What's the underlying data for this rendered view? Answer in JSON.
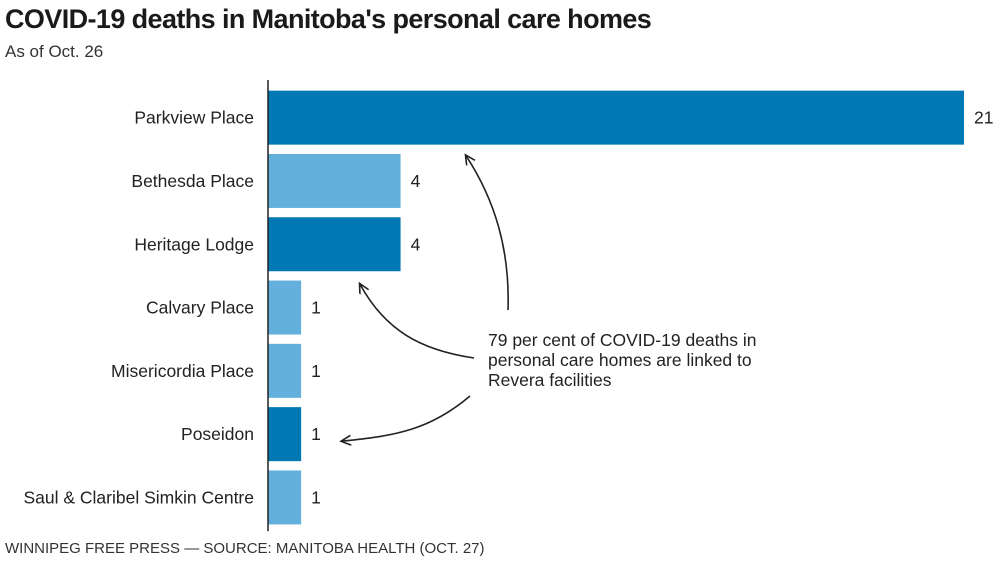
{
  "header": {
    "title": "COVID-19 deaths in Manitoba's personal care homes",
    "subtitle": "As of Oct. 26"
  },
  "footer": {
    "credit": "WINNIPEG FREE PRESS — SOURCE: MANITOBA HEALTH (OCT. 27)"
  },
  "colors": {
    "revera": "#0078b4",
    "other": "#64b0dc",
    "axis": "#222222",
    "arrow": "#222222"
  },
  "chart_data": {
    "type": "bar",
    "orientation": "horizontal",
    "title": "COVID-19 deaths in Manitoba's personal care homes",
    "subtitle": "As of Oct. 26",
    "categories": [
      "Parkview Place",
      "Bethesda Place",
      "Heritage Lodge",
      "Calvary Place",
      "Misericordia Place",
      "Poseidon",
      "Saul & Claribel Simkin Centre"
    ],
    "values": [
      21,
      4,
      4,
      1,
      1,
      1,
      1
    ],
    "revera_facility": [
      true,
      false,
      true,
      false,
      false,
      true,
      false
    ],
    "xlim": [
      0,
      21
    ],
    "xlabel": "",
    "ylabel": "",
    "annotation": {
      "lines": [
        "79 per cent of COVID-19 deaths in",
        "personal care homes are linked to",
        "Revera facilities"
      ],
      "points_to": [
        "Parkview Place",
        "Heritage Lodge",
        "Poseidon"
      ]
    }
  }
}
